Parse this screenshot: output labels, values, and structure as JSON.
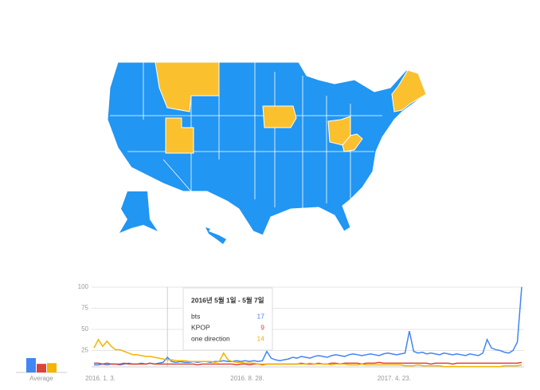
{
  "chart_data": {
    "type": "line",
    "categories": [
      "2016. 1. 3.",
      null,
      null,
      null,
      null,
      null,
      null,
      null,
      null,
      null,
      null,
      null,
      null,
      null,
      null,
      null,
      null,
      null,
      null,
      null,
      null,
      null,
      null,
      null,
      null,
      null,
      null,
      null,
      null,
      null,
      null,
      null,
      null,
      null,
      "2016. 8. 28.",
      null,
      null,
      null,
      null,
      null,
      null,
      null,
      null,
      null,
      null,
      null,
      null,
      null,
      null,
      null,
      null,
      null,
      null,
      null,
      null,
      null,
      null,
      null,
      null,
      null,
      null,
      null,
      null,
      null,
      null,
      null,
      null,
      null,
      "2017. 4. 23.",
      null,
      null,
      null,
      null,
      null,
      null,
      null,
      null,
      null,
      null,
      null,
      null,
      null,
      null,
      null,
      null,
      null,
      null,
      null,
      null,
      null,
      null,
      null,
      null,
      null,
      null,
      null,
      null,
      null,
      null,
      null
    ],
    "ylim": [
      0,
      100
    ],
    "yticks": [
      25,
      50,
      75,
      100
    ],
    "grid": true,
    "series": [
      {
        "name": "bts",
        "color": "#4285f4",
        "values": [
          8,
          8,
          9,
          8,
          9,
          9,
          8,
          9,
          10,
          9,
          9,
          10,
          9,
          10,
          9,
          10,
          11,
          17,
          12,
          11,
          12,
          11,
          11,
          12,
          11,
          12,
          12,
          11,
          12,
          12,
          13,
          12,
          12,
          13,
          12,
          13,
          12,
          13,
          12,
          13,
          24,
          16,
          14,
          13,
          14,
          15,
          17,
          16,
          18,
          17,
          16,
          18,
          19,
          18,
          17,
          19,
          20,
          19,
          18,
          20,
          21,
          20,
          19,
          20,
          21,
          20,
          19,
          21,
          22,
          21,
          20,
          21,
          22,
          48,
          24,
          22,
          23,
          21,
          22,
          21,
          20,
          22,
          21,
          20,
          21,
          20,
          19,
          21,
          20,
          19,
          22,
          38,
          28,
          26,
          25,
          23,
          22,
          25,
          35,
          100
        ]
      },
      {
        "name": "KPOP",
        "color": "#db4437",
        "values": [
          10,
          10,
          9,
          10,
          9,
          9,
          9,
          10,
          9,
          9,
          9,
          9,
          9,
          10,
          9,
          9,
          9,
          9,
          9,
          9,
          9,
          9,
          9,
          9,
          8,
          9,
          9,
          9,
          9,
          9,
          9,
          9,
          9,
          8,
          9,
          9,
          8,
          9,
          9,
          8,
          9,
          9,
          9,
          9,
          9,
          9,
          9,
          9,
          10,
          9,
          9,
          9,
          10,
          9,
          9,
          10,
          10,
          9,
          10,
          10,
          10,
          10,
          9,
          10,
          10,
          10,
          11,
          10,
          10,
          10,
          10,
          10,
          10,
          10,
          10,
          10,
          10,
          10,
          9,
          10,
          10,
          10,
          10,
          9,
          10,
          10,
          10,
          10,
          10,
          10,
          10,
          10,
          10,
          10,
          10,
          10,
          10,
          10,
          10,
          11
        ]
      },
      {
        "name": "one direction",
        "color": "#f4b400",
        "values": [
          28,
          38,
          30,
          36,
          30,
          26,
          26,
          24,
          22,
          20,
          20,
          19,
          18,
          18,
          17,
          16,
          15,
          14,
          14,
          13,
          13,
          13,
          12,
          12,
          12,
          12,
          12,
          12,
          11,
          12,
          22,
          14,
          12,
          11,
          11,
          10,
          10,
          10,
          9,
          9,
          9,
          9,
          9,
          9,
          9,
          9,
          9,
          9,
          9,
          9,
          10,
          9,
          9,
          9,
          9,
          8,
          9,
          9,
          9,
          8,
          8,
          8,
          9,
          8,
          8,
          8,
          8,
          8,
          8,
          8,
          8,
          8,
          7,
          7,
          7,
          8,
          7,
          7,
          7,
          7,
          7,
          6,
          6,
          6,
          6,
          6,
          6,
          6,
          6,
          6,
          6,
          6,
          6,
          6,
          6,
          7,
          7,
          7,
          7,
          8
        ]
      }
    ],
    "tooltip": {
      "title": "2016년 5월 1일 - 5월 7일",
      "entries": [
        {
          "name": "bts",
          "value": 17
        },
        {
          "name": "KPOP",
          "value": 9
        },
        {
          "name": "one direction",
          "value": 14
        }
      ]
    },
    "averages": {
      "label": "Average",
      "values": [
        20,
        12,
        13
      ]
    }
  }
}
